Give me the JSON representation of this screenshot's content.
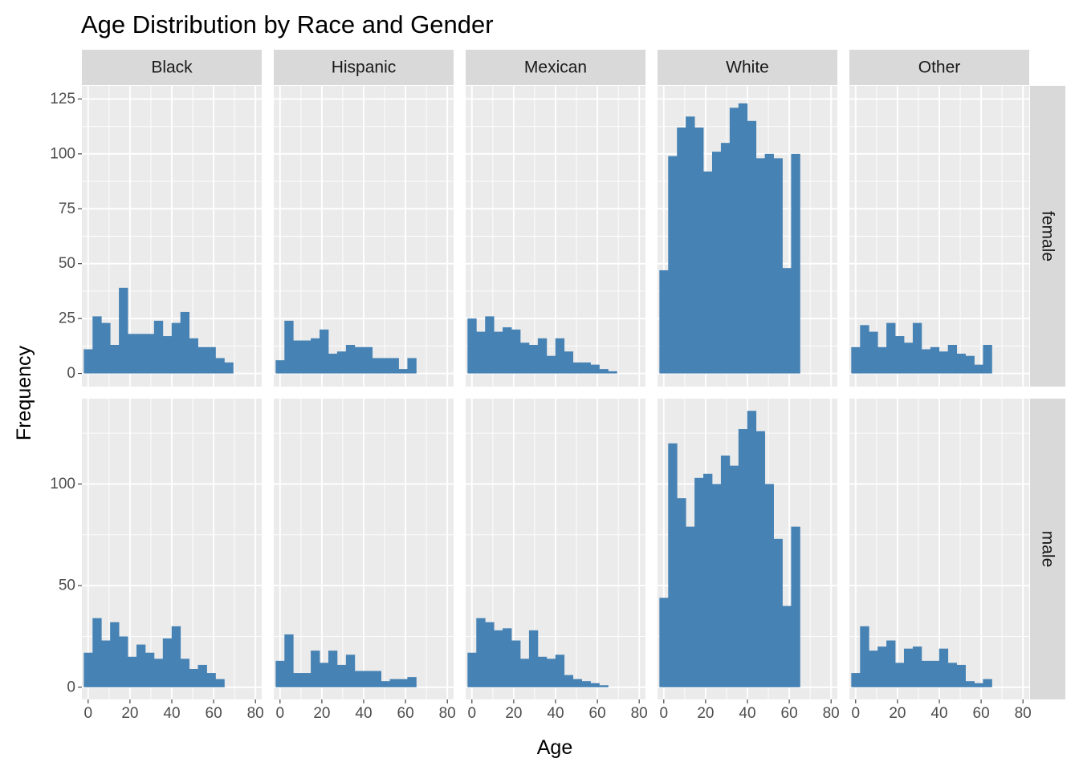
{
  "chart_data": {
    "type": "bar",
    "subtype": "faceted-histogram",
    "title": "Age Distribution by Race and Gender",
    "xlabel": "Age",
    "ylabel": "Frequency",
    "bar_color": "#4682B4",
    "panel_background": "#EBEBEB",
    "strip_background": "#D9D9D9",
    "grid": true,
    "column_facets": [
      "Black",
      "Hispanic",
      "Mexican",
      "White",
      "Other"
    ],
    "row_facets": [
      "female",
      "male"
    ],
    "xlim": [
      -3,
      83
    ],
    "x_ticks": [
      0,
      20,
      40,
      60,
      80
    ],
    "bin_width": 4.2,
    "bin_centers": [
      0,
      4.2,
      8.4,
      12.6,
      16.8,
      21,
      25.2,
      29.4,
      33.6,
      37.8,
      42,
      46.2,
      50.4,
      54.6,
      58.8,
      63,
      67.2,
      71.4,
      75.6,
      79.8
    ],
    "rows": [
      {
        "name": "female",
        "ylim": [
          -6,
          131
        ],
        "y_ticks": [
          0,
          25,
          50,
          75,
          100,
          125
        ],
        "panels": {
          "Black": [
            11,
            26,
            23,
            13,
            39,
            18,
            18,
            18,
            24,
            17,
            23,
            28,
            16,
            12,
            12,
            7,
            5,
            0,
            0,
            0
          ],
          "Hispanic": [
            6,
            24,
            15,
            15,
            16,
            20,
            9,
            10,
            13,
            12,
            12,
            7,
            7,
            7,
            2,
            7,
            0,
            0,
            0,
            0
          ],
          "Mexican": [
            25,
            19,
            26,
            19,
            21,
            20,
            14,
            13,
            16,
            8,
            16,
            10,
            5,
            5,
            4,
            2,
            1,
            0,
            0,
            0
          ],
          "White": [
            47,
            99,
            112,
            117,
            112,
            92,
            101,
            105,
            121,
            123,
            115,
            98,
            100,
            98,
            48,
            100,
            0,
            0,
            0,
            0
          ],
          "Other": [
            12,
            22,
            19,
            12,
            23,
            17,
            14,
            23,
            11,
            12,
            10,
            13,
            9,
            8,
            4,
            13,
            0,
            0,
            0,
            0
          ]
        }
      },
      {
        "name": "male",
        "ylim": [
          -6,
          142
        ],
        "y_ticks": [
          0,
          50,
          100
        ],
        "panels": {
          "Black": [
            17,
            34,
            23,
            32,
            25,
            15,
            21,
            17,
            14,
            24,
            30,
            14,
            9,
            11,
            7,
            4,
            0,
            0,
            0,
            0
          ],
          "Hispanic": [
            13,
            26,
            7,
            7,
            18,
            12,
            18,
            11,
            16,
            8,
            8,
            8,
            3,
            4,
            4,
            5,
            0,
            0,
            0,
            0
          ],
          "Mexican": [
            17,
            34,
            32,
            28,
            29,
            23,
            14,
            28,
            15,
            14,
            16,
            6,
            4,
            3,
            2,
            1,
            0,
            0,
            0,
            0
          ],
          "White": [
            44,
            120,
            93,
            79,
            103,
            105,
            100,
            114,
            109,
            127,
            136,
            126,
            100,
            73,
            40,
            79,
            0,
            0,
            0,
            0
          ],
          "Other": [
            7,
            30,
            18,
            20,
            23,
            12,
            19,
            20,
            13,
            13,
            19,
            12,
            11,
            3,
            2,
            4,
            0,
            0,
            0,
            0
          ]
        }
      }
    ]
  }
}
